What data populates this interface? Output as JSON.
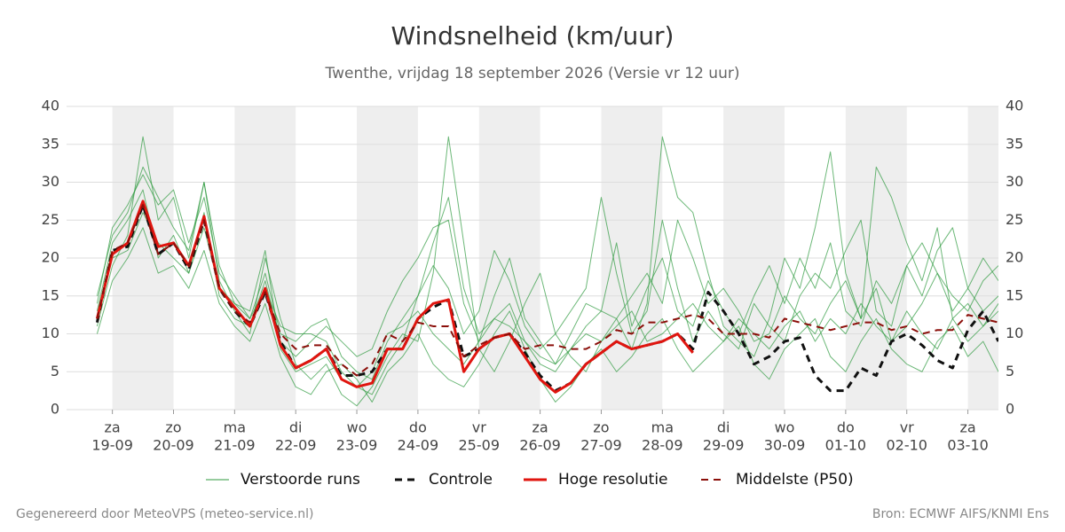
{
  "chart_data": {
    "type": "line",
    "title": "Windsnelheid (km/uur)",
    "subtitle": "Twenthe, vrijdag 18 september 2026 (Versie vr 12 uur)",
    "x": [
      -6,
      0,
      6,
      12,
      18,
      24,
      30,
      36,
      42,
      48,
      54,
      60,
      66,
      72,
      78,
      84,
      90,
      96,
      102,
      108,
      114,
      120,
      126,
      132,
      138,
      144,
      150,
      156,
      162,
      168,
      174,
      180,
      186,
      192,
      198,
      204,
      210,
      216,
      222,
      228,
      234,
      240,
      246,
      252,
      258,
      264,
      270,
      276,
      282,
      288,
      294,
      300,
      306,
      312,
      318,
      324,
      330,
      336,
      342,
      348
    ],
    "xlim": [
      -18,
      348
    ],
    "xticks": [
      {
        "value": 0,
        "label": "za",
        "date": "19-09"
      },
      {
        "value": 24,
        "label": "zo",
        "date": "20-09"
      },
      {
        "value": 48,
        "label": "ma",
        "date": "21-09"
      },
      {
        "value": 72,
        "label": "di",
        "date": "22-09"
      },
      {
        "value": 96,
        "label": "wo",
        "date": "23-09"
      },
      {
        "value": 120,
        "label": "do",
        "date": "24-09"
      },
      {
        "value": 144,
        "label": "vr",
        "date": "25-09"
      },
      {
        "value": 168,
        "label": "za",
        "date": "26-09"
      },
      {
        "value": 192,
        "label": "zo",
        "date": "27-09"
      },
      {
        "value": 216,
        "label": "ma",
        "date": "28-09"
      },
      {
        "value": 240,
        "label": "di",
        "date": "29-09"
      },
      {
        "value": 264,
        "label": "wo",
        "date": "30-09"
      },
      {
        "value": 288,
        "label": "do",
        "date": "01-10"
      },
      {
        "value": 312,
        "label": "vr",
        "date": "02-10"
      },
      {
        "value": 336,
        "label": "za",
        "date": "03-10"
      }
    ],
    "ylim": [
      0,
      40
    ],
    "yticks": [
      0,
      5,
      10,
      15,
      20,
      25,
      30,
      35,
      40
    ],
    "grid": true,
    "ensemble": {
      "name": "Verstoorde runs",
      "color": "#2e9a3e",
      "runs": [
        [
          14,
          24,
          27,
          31,
          27,
          29,
          22,
          28,
          18,
          15,
          12,
          18,
          10,
          9,
          11,
          12,
          7,
          5,
          4,
          9,
          12,
          15,
          22,
          28,
          16,
          10,
          12,
          14,
          9,
          6,
          5,
          8,
          11,
          13,
          12,
          15,
          18,
          14,
          25,
          20,
          14,
          16,
          13,
          9,
          10,
          15,
          12,
          10,
          14,
          17,
          12,
          16,
          9,
          11,
          14,
          18,
          13,
          16,
          20,
          17
        ],
        [
          11,
          19,
          23,
          36,
          25,
          28,
          20,
          30,
          17,
          13,
          10,
          20,
          12,
          6,
          4,
          6,
          2,
          0.5,
          3,
          7,
          10,
          9,
          18,
          36,
          22,
          8,
          5,
          9,
          14,
          18,
          10,
          7,
          5,
          9,
          12,
          8,
          14,
          36,
          28,
          26,
          18,
          11,
          9,
          7,
          12,
          20,
          16,
          24,
          34,
          18,
          12,
          32,
          28,
          22,
          17,
          24,
          12,
          9,
          11,
          14
        ],
        [
          10,
          17,
          20,
          24,
          18,
          19,
          16,
          21,
          14,
          11,
          9,
          14,
          7,
          3,
          2,
          5,
          6,
          4,
          1,
          5,
          7,
          10,
          6,
          4,
          3,
          6,
          10,
          13,
          8,
          4,
          1,
          3,
          6,
          8,
          5,
          7,
          10,
          12,
          8,
          5,
          7,
          9,
          11,
          6,
          4,
          8,
          10,
          12,
          7,
          5,
          9,
          12,
          8,
          6,
          5,
          9,
          11,
          7,
          9,
          5
        ],
        [
          13,
          22,
          25,
          29,
          20,
          23,
          18,
          26,
          15,
          12,
          11,
          17,
          9,
          7,
          9,
          11,
          9,
          7,
          8,
          13,
          17,
          20,
          24,
          25,
          14,
          9,
          15,
          20,
          12,
          9,
          6,
          10,
          14,
          13,
          22,
          11,
          16,
          20,
          13,
          11,
          17,
          13,
          10,
          15,
          19,
          14,
          20,
          16,
          22,
          13,
          11,
          17,
          14,
          19,
          22,
          18,
          15,
          13,
          17,
          19
        ],
        [
          12,
          20,
          21,
          26,
          22,
          20,
          18,
          24,
          16,
          14,
          12,
          16,
          11,
          10,
          10,
          9,
          5,
          3,
          5,
          10,
          11,
          13,
          10,
          8,
          6,
          9,
          12,
          11,
          9,
          7,
          6,
          8,
          10,
          9,
          11,
          13,
          9,
          10,
          12,
          14,
          11,
          9,
          12,
          10,
          8,
          11,
          13,
          9,
          12,
          10,
          14,
          11,
          9,
          13,
          10,
          8,
          12,
          14,
          11,
          13
        ],
        [
          15,
          23,
          26,
          32,
          28,
          24,
          21,
          30,
          19,
          14,
          13,
          21,
          8,
          5,
          6,
          7,
          4,
          3,
          2,
          6,
          9,
          15,
          19,
          16,
          10,
          13,
          21,
          17,
          11,
          8,
          10,
          13,
          16,
          28,
          18,
          10,
          13,
          25,
          16,
          9,
          13,
          10,
          8,
          14,
          11,
          9,
          15,
          18,
          16,
          21,
          25,
          13,
          11,
          19,
          15,
          21,
          24,
          16,
          13,
          15
        ]
      ]
    },
    "series": [
      {
        "name": "Controle",
        "color": "#111111",
        "dashed": true,
        "width": 3,
        "values": [
          11.5,
          21,
          21.5,
          27,
          20.5,
          22,
          18.5,
          25,
          16,
          13,
          11,
          15.5,
          9,
          5.5,
          6.5,
          8,
          4.5,
          4.5,
          5,
          8,
          8,
          12,
          13.5,
          14.5,
          7,
          8,
          9.5,
          10,
          7.5,
          4.5,
          2.5,
          3.5,
          6,
          7.5,
          9,
          8,
          8.5,
          9,
          10,
          8,
          15.5,
          13,
          10,
          6,
          7,
          9,
          9.5,
          4.5,
          2.5,
          2.5,
          5.5,
          4.5,
          9,
          10,
          8.5,
          6.5,
          5.5,
          10.5,
          13,
          9
        ]
      },
      {
        "name": "Hoge resolutie",
        "color": "#e0150f",
        "dashed": false,
        "width": 3,
        "x": [
          -6,
          0,
          6,
          12,
          18,
          24,
          30,
          36,
          42,
          48,
          54,
          60,
          66,
          72,
          78,
          84,
          90,
          96,
          102,
          108,
          114,
          120,
          126,
          132,
          138,
          144,
          150,
          156,
          162,
          168,
          174,
          180,
          186,
          192,
          198,
          204,
          210,
          216,
          222,
          228
        ],
        "values": [
          12,
          20.5,
          22,
          27.5,
          21.5,
          22,
          19,
          25.5,
          16,
          13.5,
          11,
          16,
          8.5,
          5.5,
          6.5,
          8,
          4,
          3,
          3.5,
          8,
          8,
          12,
          14,
          14.5,
          5,
          8,
          9.5,
          10,
          7,
          4,
          2.3,
          3.5,
          6,
          7.5,
          9,
          8,
          8.5,
          9,
          10,
          7.5
        ]
      },
      {
        "name": "Middelste (P50)",
        "color": "#8b0f0a",
        "dashed": true,
        "width": 2,
        "values": [
          12,
          21,
          22,
          27,
          20.5,
          22,
          19,
          25,
          16,
          13,
          11.5,
          15.5,
          10,
          8,
          8.5,
          8.5,
          6,
          4.5,
          6,
          10,
          9,
          11.5,
          11,
          11,
          7,
          8.5,
          9.5,
          10,
          8,
          8.5,
          8.5,
          8,
          8,
          9,
          10.5,
          10,
          11.5,
          11.5,
          12,
          12.5,
          12,
          10,
          10,
          10,
          9.5,
          12,
          11.5,
          11,
          10.5,
          11,
          11.5,
          11.5,
          10.5,
          11,
          10,
          10.5,
          10.5,
          12.5,
          12,
          11.5
        ]
      }
    ],
    "credit": "Gegenereerd door MeteoVPS (meteo-service.nl)",
    "source": "Bron: ECMWF AIFS/KNMI Ens"
  }
}
